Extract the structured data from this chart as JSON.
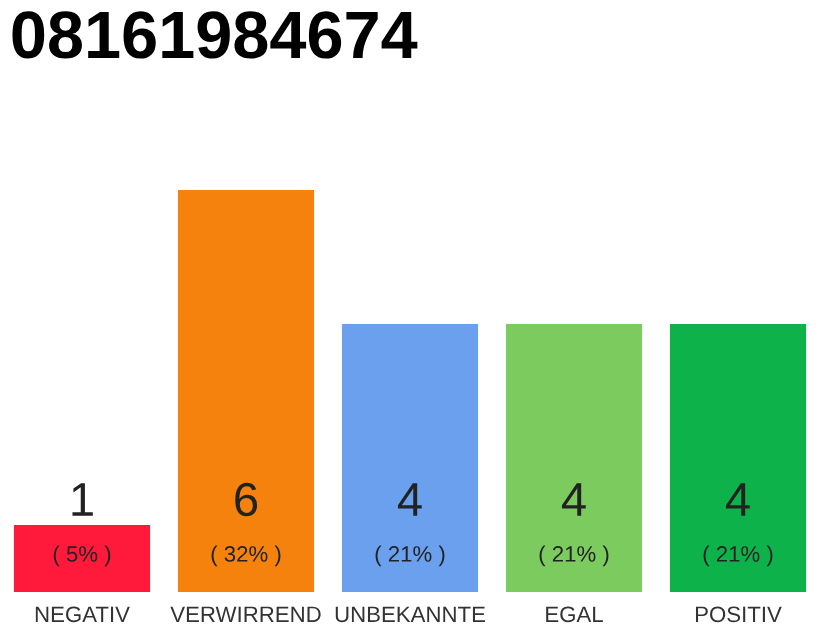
{
  "chart_data": {
    "type": "bar",
    "title": "08161984674",
    "categories": [
      "NEGATIV",
      "VERWIRREND",
      "UNBEKANNTE",
      "EGAL",
      "POSITIV"
    ],
    "values": [
      1,
      6,
      4,
      4,
      4
    ],
    "colors": [
      "#ff1a3c",
      "#f5820d",
      "#6aa0ee",
      "#7ccb5f",
      "#0db34a"
    ],
    "value_labels": [
      "1\n( 5% )",
      "6\n( 32% )",
      "4\n( 21% )",
      "4\n( 21% )",
      "4\n( 21% )"
    ],
    "grid": false,
    "legend": false
  }
}
